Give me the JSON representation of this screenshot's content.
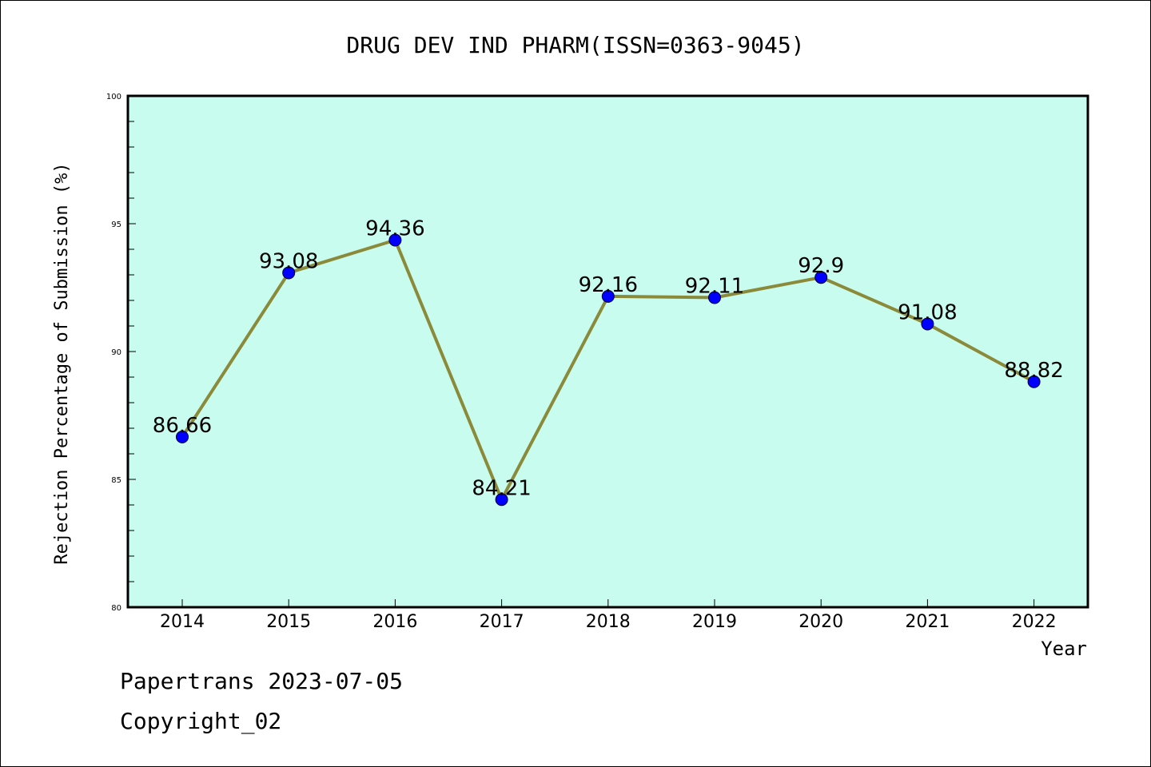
{
  "chart_data": {
    "type": "line",
    "title": "DRUG DEV IND PHARM(ISSN=0363-9045)",
    "xlabel": "Year",
    "ylabel": "Rejection Percentage of Submission (%)",
    "x": [
      "2014",
      "2015",
      "2016",
      "2017",
      "2018",
      "2019",
      "2020",
      "2021",
      "2022"
    ],
    "series": [
      {
        "values": [
          86.66,
          93.08,
          94.36,
          84.21,
          92.16,
          92.11,
          92.9,
          91.08,
          88.82
        ],
        "labels": [
          "86.66",
          "93.08",
          "94.36",
          "84.21",
          "92.16",
          "92.11",
          "92.9",
          "91.08",
          "88.82"
        ],
        "line_color": "#8b8a3a",
        "marker_color": "#0000ff"
      }
    ],
    "ylim": [
      80,
      100
    ],
    "yticks": [
      "80",
      "85",
      "90",
      "95",
      "100"
    ],
    "grid": false,
    "plot_background": "#c8fcee"
  },
  "footer": {
    "line1": "Papertrans 2023-07-05",
    "line2": "Copyright_02"
  }
}
